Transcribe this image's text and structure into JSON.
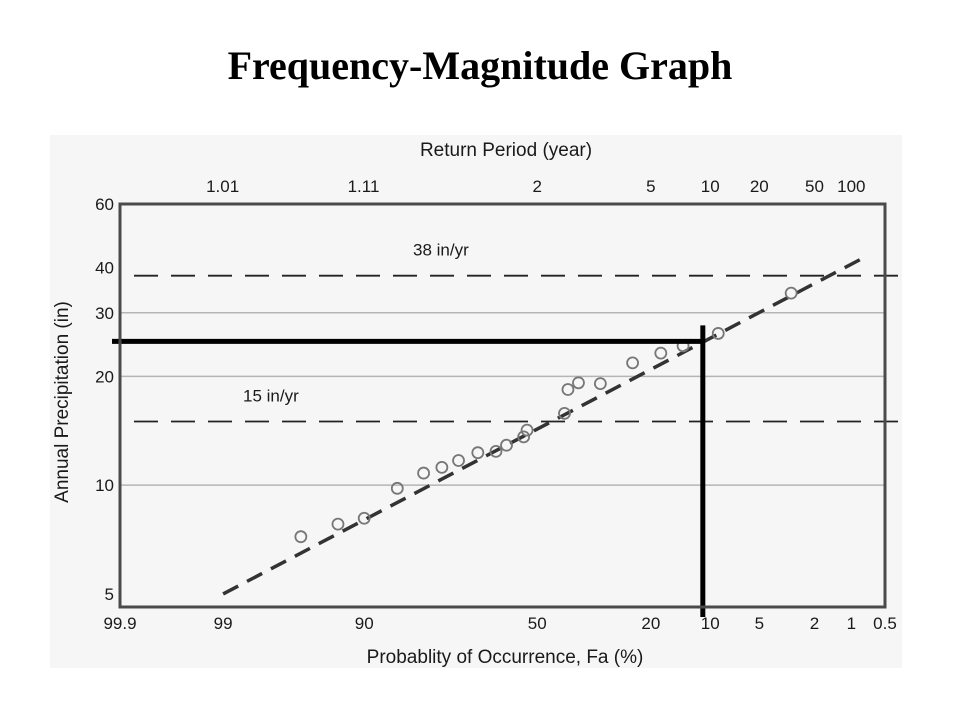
{
  "title": "Frequency-Magnitude Graph",
  "chart_data": {
    "type": "scatter",
    "xlabel": "Probablity of Occurrence, Fa (%)",
    "x2label": "Return Period (year)",
    "ylabel": "Annual Precipitation (in)",
    "x_scale": "probability",
    "y_scale": "log",
    "xlim": [
      99.9,
      0.5
    ],
    "ylim": [
      4.6,
      60
    ],
    "x_ticks": [
      {
        "value": 99.9,
        "label": "99.9"
      },
      {
        "value": 99,
        "label": "99"
      },
      {
        "value": 90,
        "label": "90"
      },
      {
        "value": 50,
        "label": "50"
      },
      {
        "value": 20,
        "label": "20"
      },
      {
        "value": 10,
        "label": "10"
      },
      {
        "value": 5,
        "label": "5"
      },
      {
        "value": 2,
        "label": "2"
      },
      {
        "value": 1,
        "label": "1"
      },
      {
        "value": 0.5,
        "label": "0.5"
      }
    ],
    "x2_ticks": [
      {
        "value": 1.01,
        "label": "1.01"
      },
      {
        "value": 1.11,
        "label": "1.11"
      },
      {
        "value": 2,
        "label": "2"
      },
      {
        "value": 5,
        "label": "5"
      },
      {
        "value": 10,
        "label": "10"
      },
      {
        "value": 20,
        "label": "20"
      },
      {
        "value": 50,
        "label": "50"
      },
      {
        "value": 100,
        "label": "100"
      }
    ],
    "y_ticks": [
      {
        "value": 5,
        "label": "5"
      },
      {
        "value": 10,
        "label": "10"
      },
      {
        "value": 20,
        "label": "20"
      },
      {
        "value": 30,
        "label": "30"
      },
      {
        "value": 40,
        "label": "40"
      },
      {
        "value": 60,
        "label": "60"
      }
    ],
    "gridlines_y": [
      10,
      20,
      30
    ],
    "series": [
      {
        "points": [
          {
            "x": 96,
            "y": 7.2
          },
          {
            "x": 93,
            "y": 7.8
          },
          {
            "x": 90,
            "y": 8.1
          },
          {
            "x": 85,
            "y": 9.8
          },
          {
            "x": 80,
            "y": 10.8
          },
          {
            "x": 76,
            "y": 11.2
          },
          {
            "x": 72,
            "y": 11.7
          },
          {
            "x": 67,
            "y": 12.3
          },
          {
            "x": 62,
            "y": 12.4
          },
          {
            "x": 59,
            "y": 12.9
          },
          {
            "x": 54,
            "y": 13.6
          },
          {
            "x": 53,
            "y": 14.2
          },
          {
            "x": 42,
            "y": 15.8
          },
          {
            "x": 41,
            "y": 18.4
          },
          {
            "x": 38,
            "y": 19.2
          },
          {
            "x": 32,
            "y": 19.1
          },
          {
            "x": 24,
            "y": 21.8
          },
          {
            "x": 18,
            "y": 23.2
          },
          {
            "x": 14,
            "y": 24.3
          },
          {
            "x": 9,
            "y": 26.3
          },
          {
            "x": 3,
            "y": 34
          }
        ]
      }
    ],
    "fit_line": [
      {
        "x": 99,
        "y": 5
      },
      {
        "x": 0.5,
        "y": 42
      }
    ],
    "reference_lines": [
      {
        "y": 38,
        "label": "38 in/yr"
      },
      {
        "y": 15,
        "label": "15 in/yr"
      }
    ],
    "highlight": {
      "x": 11,
      "y": 25
    }
  }
}
